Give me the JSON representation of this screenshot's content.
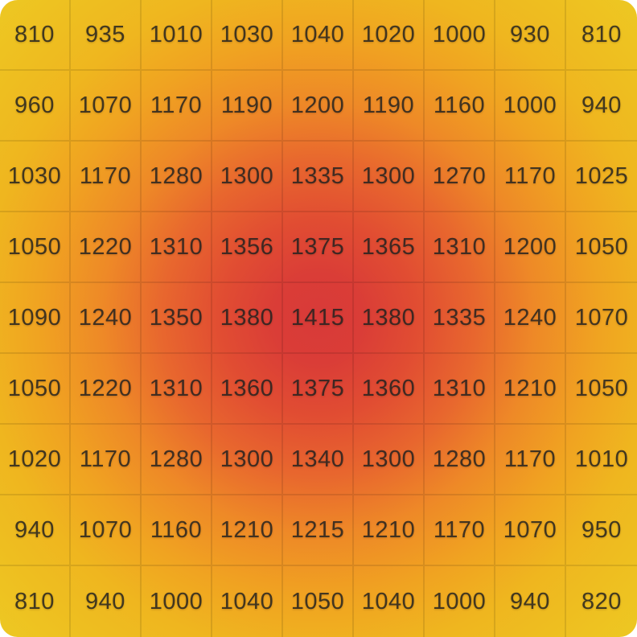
{
  "chart_data": {
    "type": "heatmap",
    "title": "",
    "xlabel": "",
    "ylabel": "",
    "rows": 9,
    "cols": 9,
    "values": [
      [
        810,
        935,
        1010,
        1030,
        1040,
        1020,
        1000,
        930,
        810
      ],
      [
        960,
        1070,
        1170,
        1190,
        1200,
        1190,
        1160,
        1000,
        940
      ],
      [
        1030,
        1170,
        1280,
        1300,
        1335,
        1300,
        1270,
        1170,
        1025
      ],
      [
        1050,
        1220,
        1310,
        1356,
        1375,
        1365,
        1310,
        1200,
        1050
      ],
      [
        1090,
        1240,
        1350,
        1380,
        1415,
        1380,
        1335,
        1240,
        1070
      ],
      [
        1050,
        1220,
        1310,
        1360,
        1375,
        1360,
        1310,
        1210,
        1050
      ],
      [
        1020,
        1170,
        1280,
        1300,
        1340,
        1300,
        1280,
        1170,
        1010
      ],
      [
        940,
        1070,
        1160,
        1210,
        1215,
        1210,
        1170,
        1070,
        950
      ],
      [
        810,
        940,
        1000,
        1040,
        1050,
        1040,
        1000,
        940,
        820
      ]
    ],
    "value_range": [
      810,
      1415
    ],
    "colormap": {
      "low": "#edc822",
      "mid_low": "#f0a321",
      "mid": "#ee8927",
      "mid_high": "#e8672e",
      "high": "#d83a38"
    },
    "legend": "none",
    "grid_lines": true,
    "grid_line_color": "rgba(0,0,0,0.10)",
    "text_color": "#212121",
    "interpolation": "smooth-radial"
  }
}
